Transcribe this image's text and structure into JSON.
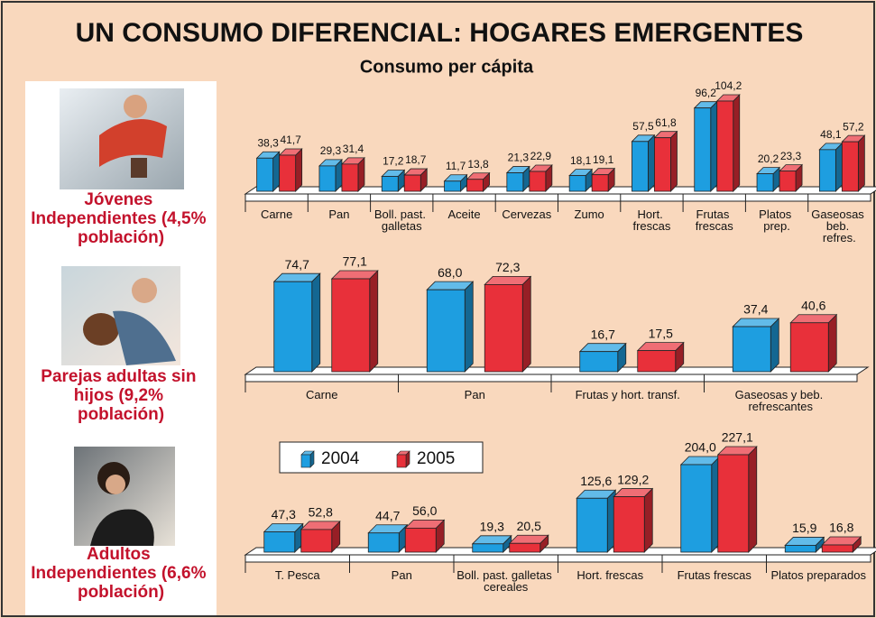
{
  "title": "UN CONSUMO DIFERENCIAL: HOGARES EMERGENTES",
  "subtitle": "Consumo per cápita",
  "chart_data": [
    {
      "type": "bar3d",
      "title": "Jóvenes Independientes (4,5% población)",
      "categories": [
        "Carne",
        "Pan",
        "Boll. past. galletas",
        "Aceite",
        "Cervezas",
        "Zumo",
        "Hort. frescas",
        "Frutas frescas",
        "Platos prep.",
        "Gaseosas beb. refres."
      ],
      "series": [
        {
          "values": [
            38.3,
            29.3,
            17.2,
            11.7,
            21.3,
            18.1,
            57.5,
            96.2,
            20.2,
            48.1
          ],
          "value_labels": [
            "38,3",
            "29,3",
            "17,2",
            "11,7",
            "21,3",
            "18,1",
            "57,5",
            "96,2",
            "20,2",
            "48,1"
          ]
        },
        {
          "values": [
            41.7,
            31.4,
            18.7,
            13.8,
            22.9,
            19.1,
            61.8,
            104.2,
            23.3,
            57.2
          ],
          "value_labels": [
            "41,7",
            "31,4",
            "18,7",
            "13,8",
            "22,9",
            "19,1",
            "61,8",
            "104,2",
            "23,3",
            "57,2"
          ]
        }
      ]
    },
    {
      "type": "bar3d",
      "title": "Parejas adultas sin hijos (9,2% población)",
      "categories": [
        "Carne",
        "Pan",
        "Frutas y hort. transf.",
        "Gaseosas y beb. refrescantes"
      ],
      "series": [
        {
          "values": [
            74.7,
            68.0,
            16.7,
            37.4
          ],
          "value_labels": [
            "74,7",
            "68,0",
            "16,7",
            "37,4"
          ]
        },
        {
          "values": [
            77.1,
            72.3,
            17.5,
            40.6
          ],
          "value_labels": [
            "77,1",
            "72,3",
            "17,5",
            "40,6"
          ]
        }
      ]
    },
    {
      "type": "bar3d",
      "title": "Adultos Independientes (6,6% población)",
      "categories": [
        "T. Pesca",
        "Pan",
        "Boll. past. galletas cereales",
        "Hort. frescas",
        "Frutas frescas",
        "Platos preparados"
      ],
      "legend": true,
      "series": [
        {
          "name": "2004",
          "color": "#1e9ee0",
          "values": [
            47.3,
            44.7,
            19.3,
            125.6,
            204.0,
            15.9
          ],
          "value_labels": [
            "47,3",
            "44,7",
            "19,3",
            "125,6",
            "204,0",
            "15,9"
          ]
        },
        {
          "name": "2005",
          "color": "#e8303a",
          "values": [
            52.8,
            56.0,
            20.5,
            129.2,
            227.1,
            16.8
          ],
          "value_labels": [
            "52,8",
            "56,0",
            "20,5",
            "129,2",
            "227,1",
            "16,8"
          ]
        }
      ]
    }
  ]
}
